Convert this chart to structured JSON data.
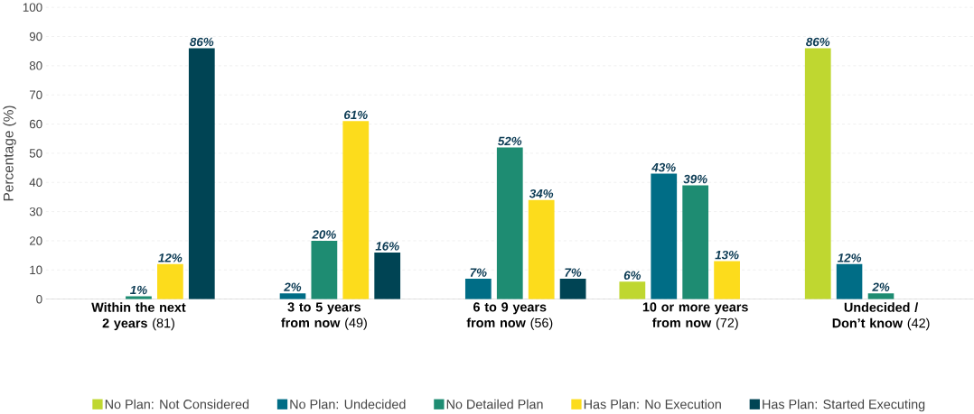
{
  "chart_data": {
    "type": "bar",
    "ylabel": "Percentage (%)",
    "categories": [
      "**Within the next 2 years** (81)",
      "**3 to 5 years from now** (49)",
      "**6 to 9 years from now** (56)",
      "**10 or more years from now** (72)",
      "**Undecided / Don’t know** (42)"
    ],
    "series": [
      {
        "name": "No Plan: Not Considered",
        "color": "#bfd730",
        "values": [
          null,
          null,
          null,
          6,
          86
        ],
        "value_labels": [
          null,
          null,
          null,
          "6%",
          "86%"
        ]
      },
      {
        "name": "No Plan: Undecided",
        "color": "#006d86",
        "values": [
          null,
          2,
          7,
          43,
          12
        ],
        "value_labels": [
          null,
          "2%",
          "7%",
          "43%",
          "12%"
        ]
      },
      {
        "name": "No Detailed Plan",
        "color": "#1e8c72",
        "values": [
          1,
          20,
          52,
          39,
          2
        ],
        "value_labels": [
          "1%",
          "20%",
          "52%",
          "39%",
          "2%"
        ]
      },
      {
        "name": "Has Plan: No Execution",
        "color": "#fcdc1c",
        "values": [
          12,
          61,
          34,
          13,
          null
        ],
        "value_labels": [
          "12%",
          "61%",
          "34%",
          "13%",
          null
        ]
      },
      {
        "name": "Has Plan: Started Executing",
        "color": "#004454",
        "values": [
          86,
          16,
          7,
          null,
          null
        ],
        "value_labels": [
          "86%",
          "16%",
          "7%",
          null,
          null
        ]
      }
    ],
    "ylim": [
      0,
      100
    ],
    "yticks": [
      0,
      10,
      20,
      30,
      40,
      50,
      60,
      70,
      80,
      90,
      100
    ],
    "grid": "y",
    "legend": "bottom"
  }
}
